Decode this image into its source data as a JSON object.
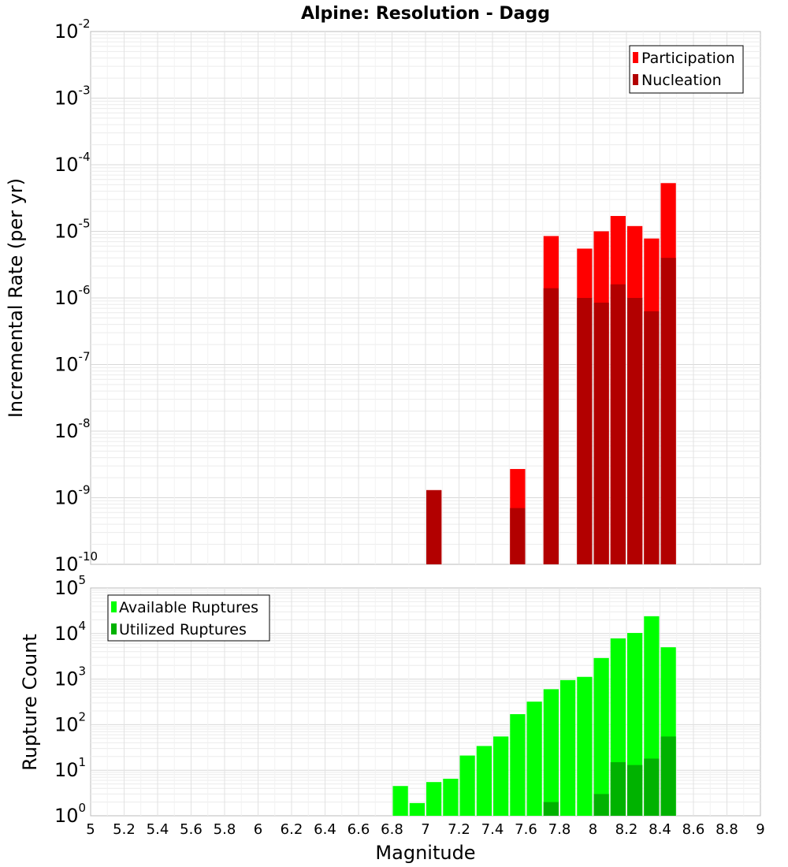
{
  "figure_title": "Alpine: Resolution - Dagg",
  "chart_data": [
    {
      "type": "bar",
      "panel": "top",
      "title": "Alpine: Resolution - Dagg",
      "ylabel": "Incremental Rate (per yr)",
      "xlabel": "",
      "ylog": true,
      "xlim": [
        5,
        9
      ],
      "ylim_exp": [
        -10,
        -2
      ],
      "bar_width": 0.1,
      "grid": true,
      "legend_placement": "top-right",
      "series": [
        {
          "name": "Participation",
          "color": "#ff0000",
          "points": [
            [
              7.0,
              1.3e-09
            ],
            [
              7.5,
              2.7e-09
            ],
            [
              7.7,
              8.5e-06
            ],
            [
              7.9,
              5.5e-06
            ],
            [
              8.0,
              1e-05
            ],
            [
              8.1,
              1.7e-05
            ],
            [
              8.2,
              1.2e-05
            ],
            [
              8.3,
              7.8e-06
            ],
            [
              8.4,
              5.3e-05
            ]
          ]
        },
        {
          "name": "Nucleation",
          "color": "#b20000",
          "points": [
            [
              7.0,
              1.3e-09
            ],
            [
              7.5,
              7e-10
            ],
            [
              7.7,
              1.4e-06
            ],
            [
              7.9,
              1e-06
            ],
            [
              8.0,
              8.5e-07
            ],
            [
              8.1,
              1.6e-06
            ],
            [
              8.2,
              1e-06
            ],
            [
              8.3,
              6.3e-07
            ],
            [
              8.4,
              4e-06
            ]
          ]
        }
      ]
    },
    {
      "type": "bar",
      "panel": "bottom",
      "title": "",
      "ylabel": "Rupture Count",
      "xlabel": "Magnitude",
      "ylog": true,
      "xlim": [
        5,
        9
      ],
      "ylim_exp": [
        0,
        5
      ],
      "bar_width": 0.1,
      "grid": true,
      "legend_placement": "top-left",
      "x_ticks": [
        "5",
        "5.2",
        "5.4",
        "5.6",
        "5.8",
        "6",
        "6.2",
        "6.4",
        "6.6",
        "6.8",
        "7",
        "7.2",
        "7.4",
        "7.6",
        "7.8",
        "8",
        "8.2",
        "8.4",
        "8.6",
        "8.8",
        "9"
      ],
      "series": [
        {
          "name": "Available Ruptures",
          "color": "#00ff00",
          "points": [
            [
              6.8,
              4.5
            ],
            [
              6.9,
              1.9
            ],
            [
              7.0,
              5.5
            ],
            [
              7.1,
              6.5
            ],
            [
              7.2,
              21
            ],
            [
              7.3,
              34
            ],
            [
              7.4,
              55
            ],
            [
              7.5,
              170
            ],
            [
              7.6,
              320
            ],
            [
              7.7,
              600
            ],
            [
              7.8,
              950
            ],
            [
              7.9,
              1120
            ],
            [
              8.0,
              2900
            ],
            [
              8.1,
              7800
            ],
            [
              8.2,
              10300
            ],
            [
              8.3,
              24000
            ],
            [
              8.4,
              5000
            ]
          ]
        },
        {
          "name": "Utilized Ruptures",
          "color": "#00b200",
          "points": [
            [
              7.0,
              1
            ],
            [
              7.5,
              1
            ],
            [
              7.7,
              2
            ],
            [
              7.9,
              1
            ],
            [
              8.0,
              3
            ],
            [
              8.1,
              15
            ],
            [
              8.2,
              13
            ],
            [
              8.3,
              18
            ],
            [
              8.4,
              55
            ]
          ]
        }
      ]
    }
  ]
}
